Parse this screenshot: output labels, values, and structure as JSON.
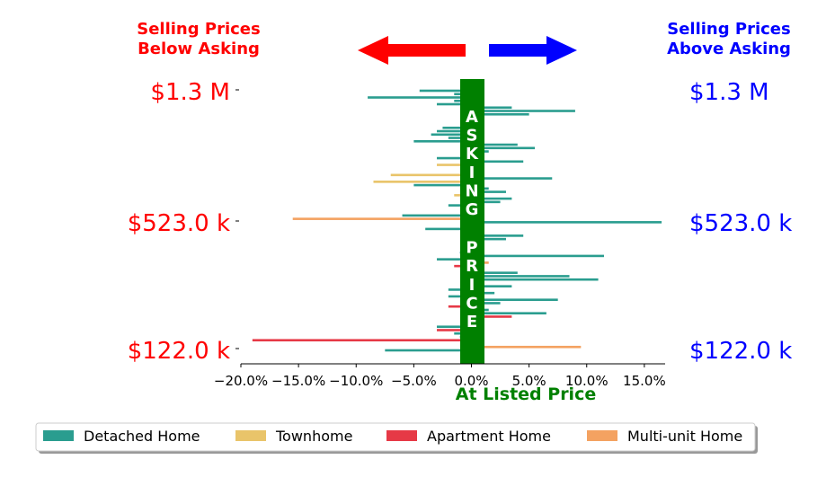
{
  "header": {
    "left_line1": "Selling Prices",
    "left_line2": "Below Asking",
    "right_line1": "Selling Prices",
    "right_line2": "Above Asking"
  },
  "center_band_text": "ASKING PRICE",
  "price_labels": {
    "left": [
      "$1.3 M",
      "$523.0 k",
      "$122.0 k"
    ],
    "right": [
      "$1.3 M",
      "$523.0 k",
      "$122.0 k"
    ]
  },
  "colors": {
    "below": "#ff0000",
    "above": "#0000ff",
    "band": "#008000",
    "detached": "#2a9d8f",
    "townhome": "#e9c46a",
    "apartment": "#e63946",
    "multiunit": "#f4a261"
  },
  "chart_data": {
    "type": "bar",
    "orientation": "horizontal",
    "xlabel": "At Listed Price",
    "xlim": [
      -20,
      20
    ],
    "x_ticks": [
      -20,
      -15,
      -10,
      -5,
      0,
      5,
      10,
      15
    ],
    "x_tick_labels": [
      "−20.0%",
      "−15.0%",
      "−10.0%",
      "−5.0%",
      "0.0%",
      "5.0%",
      "10.0%",
      "15.0%"
    ],
    "legend": [
      "Detached Home",
      "Townhome",
      "Apartment Home",
      "Multi-unit Home"
    ],
    "legend_position": "bottom",
    "series_keys": [
      "detached",
      "townhome",
      "apartment",
      "multiunit"
    ],
    "bars": [
      {
        "type": "detached",
        "value": -4.5
      },
      {
        "type": "detached",
        "value": -1.5
      },
      {
        "type": "detached",
        "value": -9.0
      },
      {
        "type": "detached",
        "value": -1.5
      },
      {
        "type": "detached",
        "value": -3.0
      },
      {
        "type": "detached",
        "value": 3.5
      },
      {
        "type": "detached",
        "value": 9.0
      },
      {
        "type": "detached",
        "value": 5.0
      },
      {
        "type": "detached",
        "value": 0.5
      },
      {
        "type": "detached",
        "value": 0.5
      },
      {
        "type": "detached",
        "value": 0.5
      },
      {
        "type": "detached",
        "value": -2.5
      },
      {
        "type": "detached",
        "value": -3.0
      },
      {
        "type": "detached",
        "value": -3.5
      },
      {
        "type": "detached",
        "value": -2.0
      },
      {
        "type": "detached",
        "value": -5.0
      },
      {
        "type": "detached",
        "value": 4.0
      },
      {
        "type": "detached",
        "value": 5.5
      },
      {
        "type": "detached",
        "value": 1.5
      },
      {
        "type": "detached",
        "value": 0.5
      },
      {
        "type": "detached",
        "value": -3.0
      },
      {
        "type": "detached",
        "value": 4.5
      },
      {
        "type": "townhome",
        "value": -3.0
      },
      {
        "type": "detached",
        "value": -0.5
      },
      {
        "type": "detached",
        "value": -0.3
      },
      {
        "type": "townhome",
        "value": -7.0
      },
      {
        "type": "detached",
        "value": 7.0
      },
      {
        "type": "townhome",
        "value": -8.5
      },
      {
        "type": "detached",
        "value": -5.0
      },
      {
        "type": "detached",
        "value": 1.5
      },
      {
        "type": "detached",
        "value": 3.0
      },
      {
        "type": "townhome",
        "value": -1.5
      },
      {
        "type": "detached",
        "value": 3.5
      },
      {
        "type": "detached",
        "value": 2.5
      },
      {
        "type": "detached",
        "value": -2.0
      },
      {
        "type": "detached",
        "value": 1.0
      },
      {
        "type": "detached",
        "value": 0.5
      },
      {
        "type": "detached",
        "value": -6.0
      },
      {
        "type": "multiunit",
        "value": -15.5
      },
      {
        "type": "detached",
        "value": 16.5
      },
      {
        "type": "detached",
        "value": 0.5
      },
      {
        "type": "detached",
        "value": -4.0
      },
      {
        "type": "detached",
        "value": 0.5
      },
      {
        "type": "detached",
        "value": 4.5
      },
      {
        "type": "detached",
        "value": 3.0
      },
      {
        "type": "detached",
        "value": 0.5
      },
      {
        "type": "detached",
        "value": 0.5
      },
      {
        "type": "detached",
        "value": 1.0
      },
      {
        "type": "detached",
        "value": -1.0
      },
      {
        "type": "detached",
        "value": 11.5
      },
      {
        "type": "detached",
        "value": -3.0
      },
      {
        "type": "multiunit",
        "value": 1.5
      },
      {
        "type": "apartment",
        "value": -1.5
      },
      {
        "type": "detached",
        "value": 0.5
      },
      {
        "type": "detached",
        "value": 4.0
      },
      {
        "type": "detached",
        "value": 8.5
      },
      {
        "type": "detached",
        "value": 11.0
      },
      {
        "type": "detached",
        "value": 0.5
      },
      {
        "type": "detached",
        "value": 3.5
      },
      {
        "type": "detached",
        "value": -2.0
      },
      {
        "type": "detached",
        "value": 2.0
      },
      {
        "type": "detached",
        "value": -2.0
      },
      {
        "type": "detached",
        "value": 7.5
      },
      {
        "type": "detached",
        "value": 2.5
      },
      {
        "type": "apartment",
        "value": -2.0
      },
      {
        "type": "detached",
        "value": 1.5
      },
      {
        "type": "detached",
        "value": 6.5
      },
      {
        "type": "apartment",
        "value": 3.5
      },
      {
        "type": "detached",
        "value": 0.5
      },
      {
        "type": "detached",
        "value": 1.0
      },
      {
        "type": "detached",
        "value": -3.0
      },
      {
        "type": "apartment",
        "value": -3.0
      },
      {
        "type": "detached",
        "value": -1.5
      },
      {
        "type": "detached",
        "value": -1.0
      },
      {
        "type": "apartment",
        "value": -19.0
      },
      {
        "type": "multiunit",
        "value": 1.0
      },
      {
        "type": "multiunit",
        "value": 9.5
      },
      {
        "type": "detached",
        "value": -7.5
      }
    ]
  }
}
